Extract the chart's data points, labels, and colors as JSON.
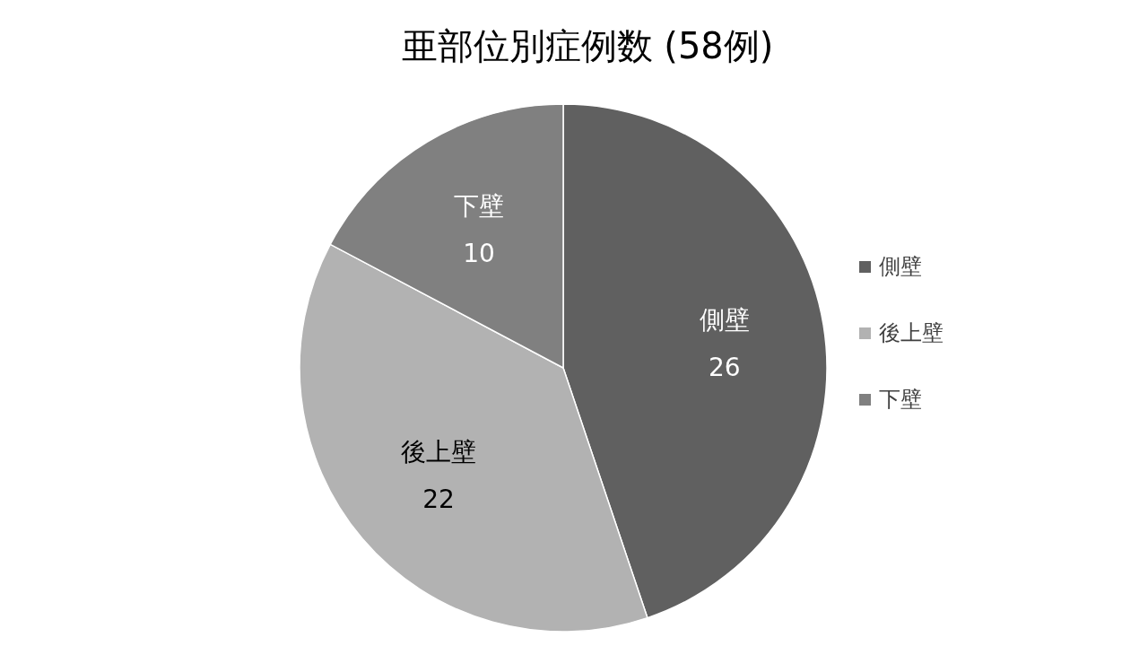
{
  "chart_data": {
    "type": "pie",
    "title": "亜部位別症例数 (58例)",
    "categories": [
      "側壁",
      "後上壁",
      "下壁"
    ],
    "values": [
      26,
      22,
      10
    ],
    "colors": [
      "#606060",
      "#b2b2b2",
      "#808080"
    ],
    "data_labels": true,
    "legend": "right"
  }
}
